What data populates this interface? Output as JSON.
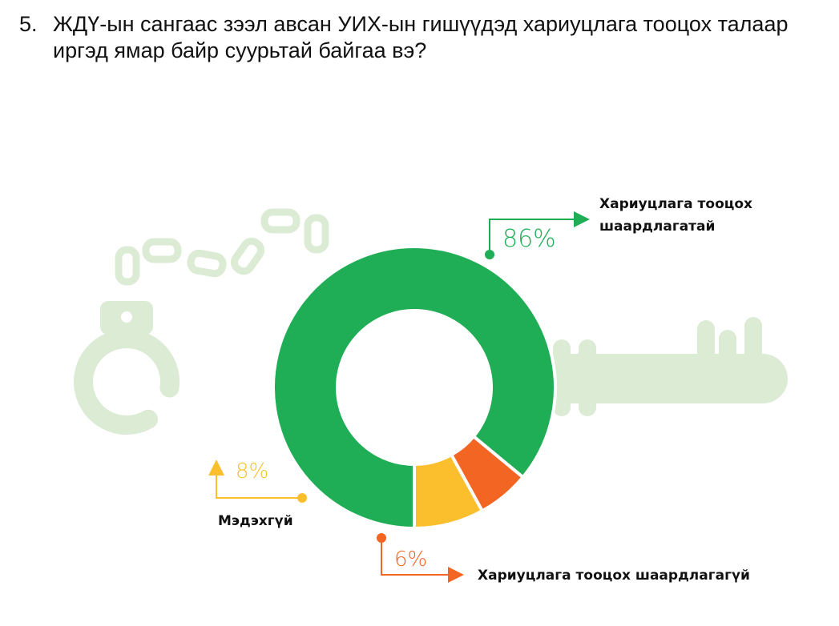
{
  "question": {
    "number": "5.",
    "text": "ЖДҮ-ын сангаас зээл авсан УИХ-ын гишүүдэд хариуцлага тооцох талаар иргэд ямар байр суурьтай байгаа вэ?"
  },
  "colors": {
    "green": "#1fae55",
    "orange": "#f26522",
    "yellow": "#fbbf2d",
    "decor": "#dcebd4"
  },
  "chart_data": {
    "type": "pie",
    "donut": true,
    "slices": [
      {
        "label": "Хариуцлага тооцох шаардлагатай",
        "label_lines": [
          "Хариуцлага тооцох",
          "шаардлагатай"
        ],
        "value": 86,
        "value_text": "86%",
        "color": "#1fae55"
      },
      {
        "label": "Хариуцлага тооцох шаардлагагүй",
        "label_lines": [
          "Хариуцлага тооцох шаардлагагүй"
        ],
        "value": 6,
        "value_text": "6%",
        "color": "#f26522"
      },
      {
        "label": "Мэдэхгүй",
        "label_lines": [
          "Мэдэхгүй"
        ],
        "value": 8,
        "value_text": "8%",
        "color": "#fbbf2d"
      }
    ]
  }
}
